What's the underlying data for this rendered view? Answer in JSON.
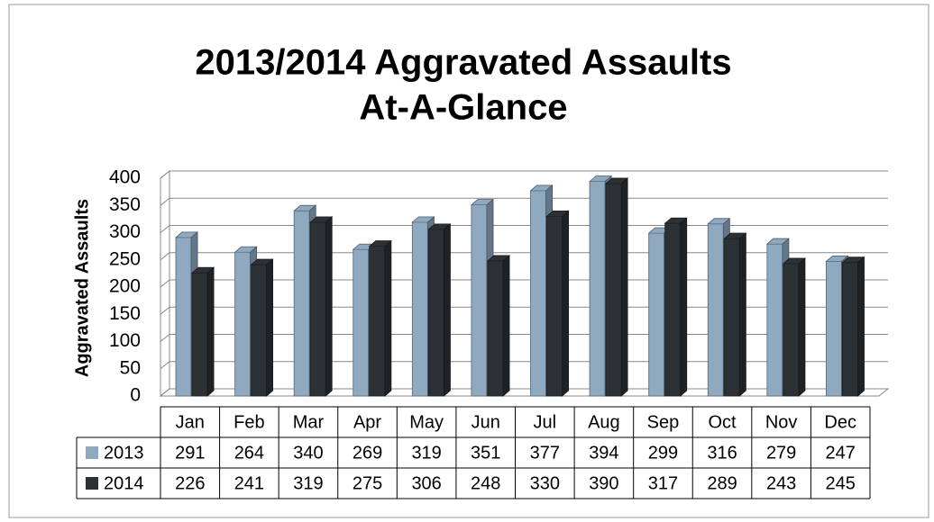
{
  "chart_data": {
    "type": "bar3d",
    "title": [
      "2013/2014 Aggravated Assaults",
      "At-A-Glance"
    ],
    "y_label": "Aggravated Assaults",
    "categories": [
      "Jan",
      "Feb",
      "Mar",
      "Apr",
      "May",
      "Jun",
      "Jul",
      "Aug",
      "Sep",
      "Oct",
      "Nov",
      "Dec"
    ],
    "series": [
      {
        "name": "2013",
        "color": "#8fa9c1",
        "values": [
          291,
          264,
          340,
          269,
          319,
          351,
          377,
          394,
          299,
          316,
          279,
          247
        ]
      },
      {
        "name": "2014",
        "color": "#2b3135",
        "values": [
          226,
          241,
          319,
          275,
          306,
          248,
          330,
          390,
          317,
          289,
          243,
          245
        ]
      }
    ],
    "ylim": [
      0,
      400
    ],
    "yticks": [
      0,
      50,
      100,
      150,
      200,
      250,
      300,
      350,
      400
    ],
    "grid": true
  }
}
